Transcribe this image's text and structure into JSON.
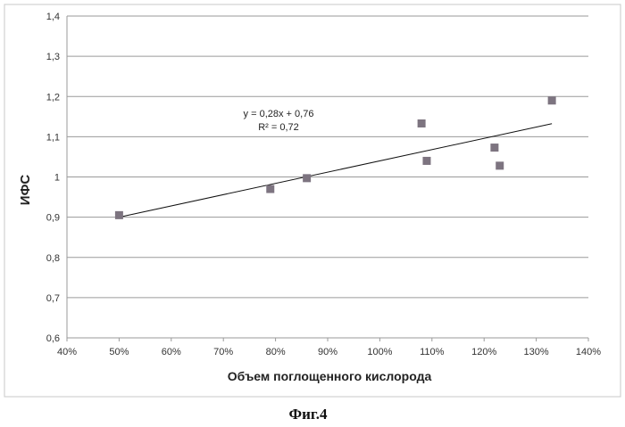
{
  "chart_data": {
    "type": "scatter",
    "ylabel": "ИФС",
    "xlabel": "Объем поглощенного кислорода",
    "xlim": [
      0.4,
      1.4
    ],
    "ylim": [
      0.6,
      1.4
    ],
    "x_ticks": [
      "40%",
      "50%",
      "60%",
      "70%",
      "80%",
      "90%",
      "100%",
      "110%",
      "120%",
      "130%",
      "140%"
    ],
    "y_ticks": [
      "0,6",
      "0,7",
      "0,8",
      "0,9",
      "1",
      "1,1",
      "1,2",
      "1,3",
      "1,4"
    ],
    "grid": "horizontal",
    "points": [
      {
        "x": 0.5,
        "y": 0.905
      },
      {
        "x": 0.79,
        "y": 0.97
      },
      {
        "x": 0.86,
        "y": 0.997
      },
      {
        "x": 1.08,
        "y": 1.133
      },
      {
        "x": 1.09,
        "y": 1.04
      },
      {
        "x": 1.22,
        "y": 1.073
      },
      {
        "x": 1.23,
        "y": 1.028
      },
      {
        "x": 1.33,
        "y": 1.19
      }
    ],
    "trendline": {
      "slope": 0.28,
      "intercept": 0.76,
      "x_range": [
        0.5,
        1.33
      ],
      "equation": "y = 0,28x + 0,76",
      "r2_label": "R² = 0,72"
    },
    "marker_color": "#7d7480"
  },
  "caption": "Фиг.4"
}
